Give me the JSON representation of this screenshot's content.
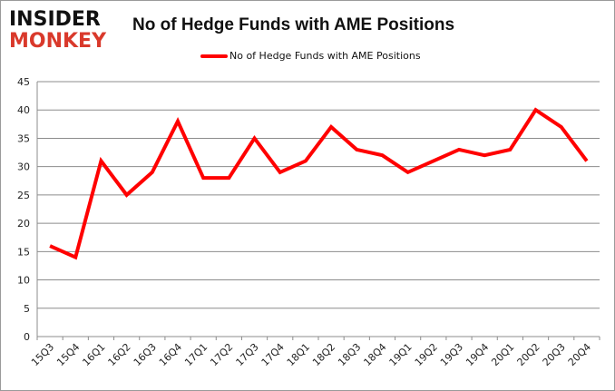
{
  "logo": {
    "line1": "INSIDER",
    "line2": "MONKEY"
  },
  "chart_data": {
    "type": "line",
    "title": "No of Hedge Funds with AME Positions",
    "xlabel": "",
    "ylabel": "",
    "categories": [
      "15Q3",
      "15Q4",
      "16Q1",
      "16Q2",
      "16Q3",
      "16Q4",
      "17Q1",
      "17Q2",
      "17Q3",
      "17Q4",
      "18Q1",
      "18Q2",
      "18Q3",
      "18Q4",
      "19Q1",
      "19Q2",
      "19Q3",
      "19Q4",
      "20Q1",
      "20Q2",
      "20Q3",
      "20Q4"
    ],
    "series": [
      {
        "name": "No of Hedge Funds with AME Positions",
        "color": "#ff0000",
        "values": [
          16,
          14,
          31,
          25,
          29,
          38,
          28,
          28,
          35,
          29,
          31,
          37,
          33,
          32,
          29,
          31,
          33,
          32,
          33,
          40,
          37,
          31
        ]
      }
    ],
    "ylim": [
      0,
      45
    ],
    "yticks": [
      0,
      5,
      10,
      15,
      20,
      25,
      30,
      35,
      40,
      45
    ],
    "grid": true,
    "legend": "top"
  }
}
